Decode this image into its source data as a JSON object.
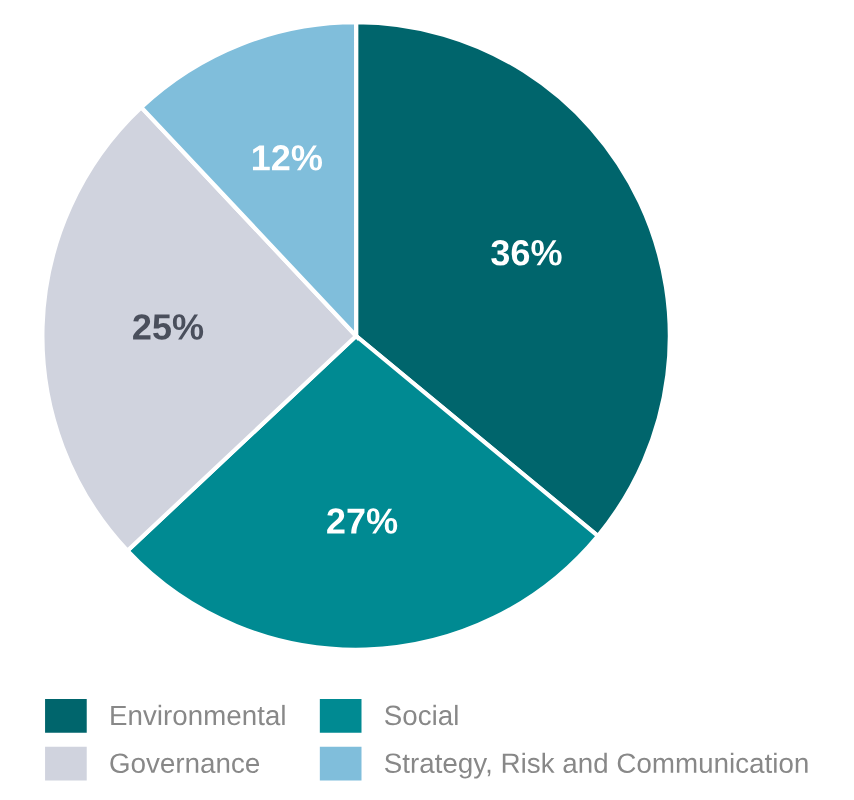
{
  "chart_data": {
    "type": "pie",
    "categories": [
      "Environmental",
      "Social",
      "Governance",
      "Strategy, Risk and Communication"
    ],
    "values": [
      36,
      27,
      25,
      12
    ],
    "value_labels": [
      "36%",
      "27%",
      "25%",
      "12%"
    ],
    "colors": [
      "#00656c",
      "#008a92",
      "#d0d3de",
      "#80bedb"
    ],
    "legend": "bottom"
  }
}
